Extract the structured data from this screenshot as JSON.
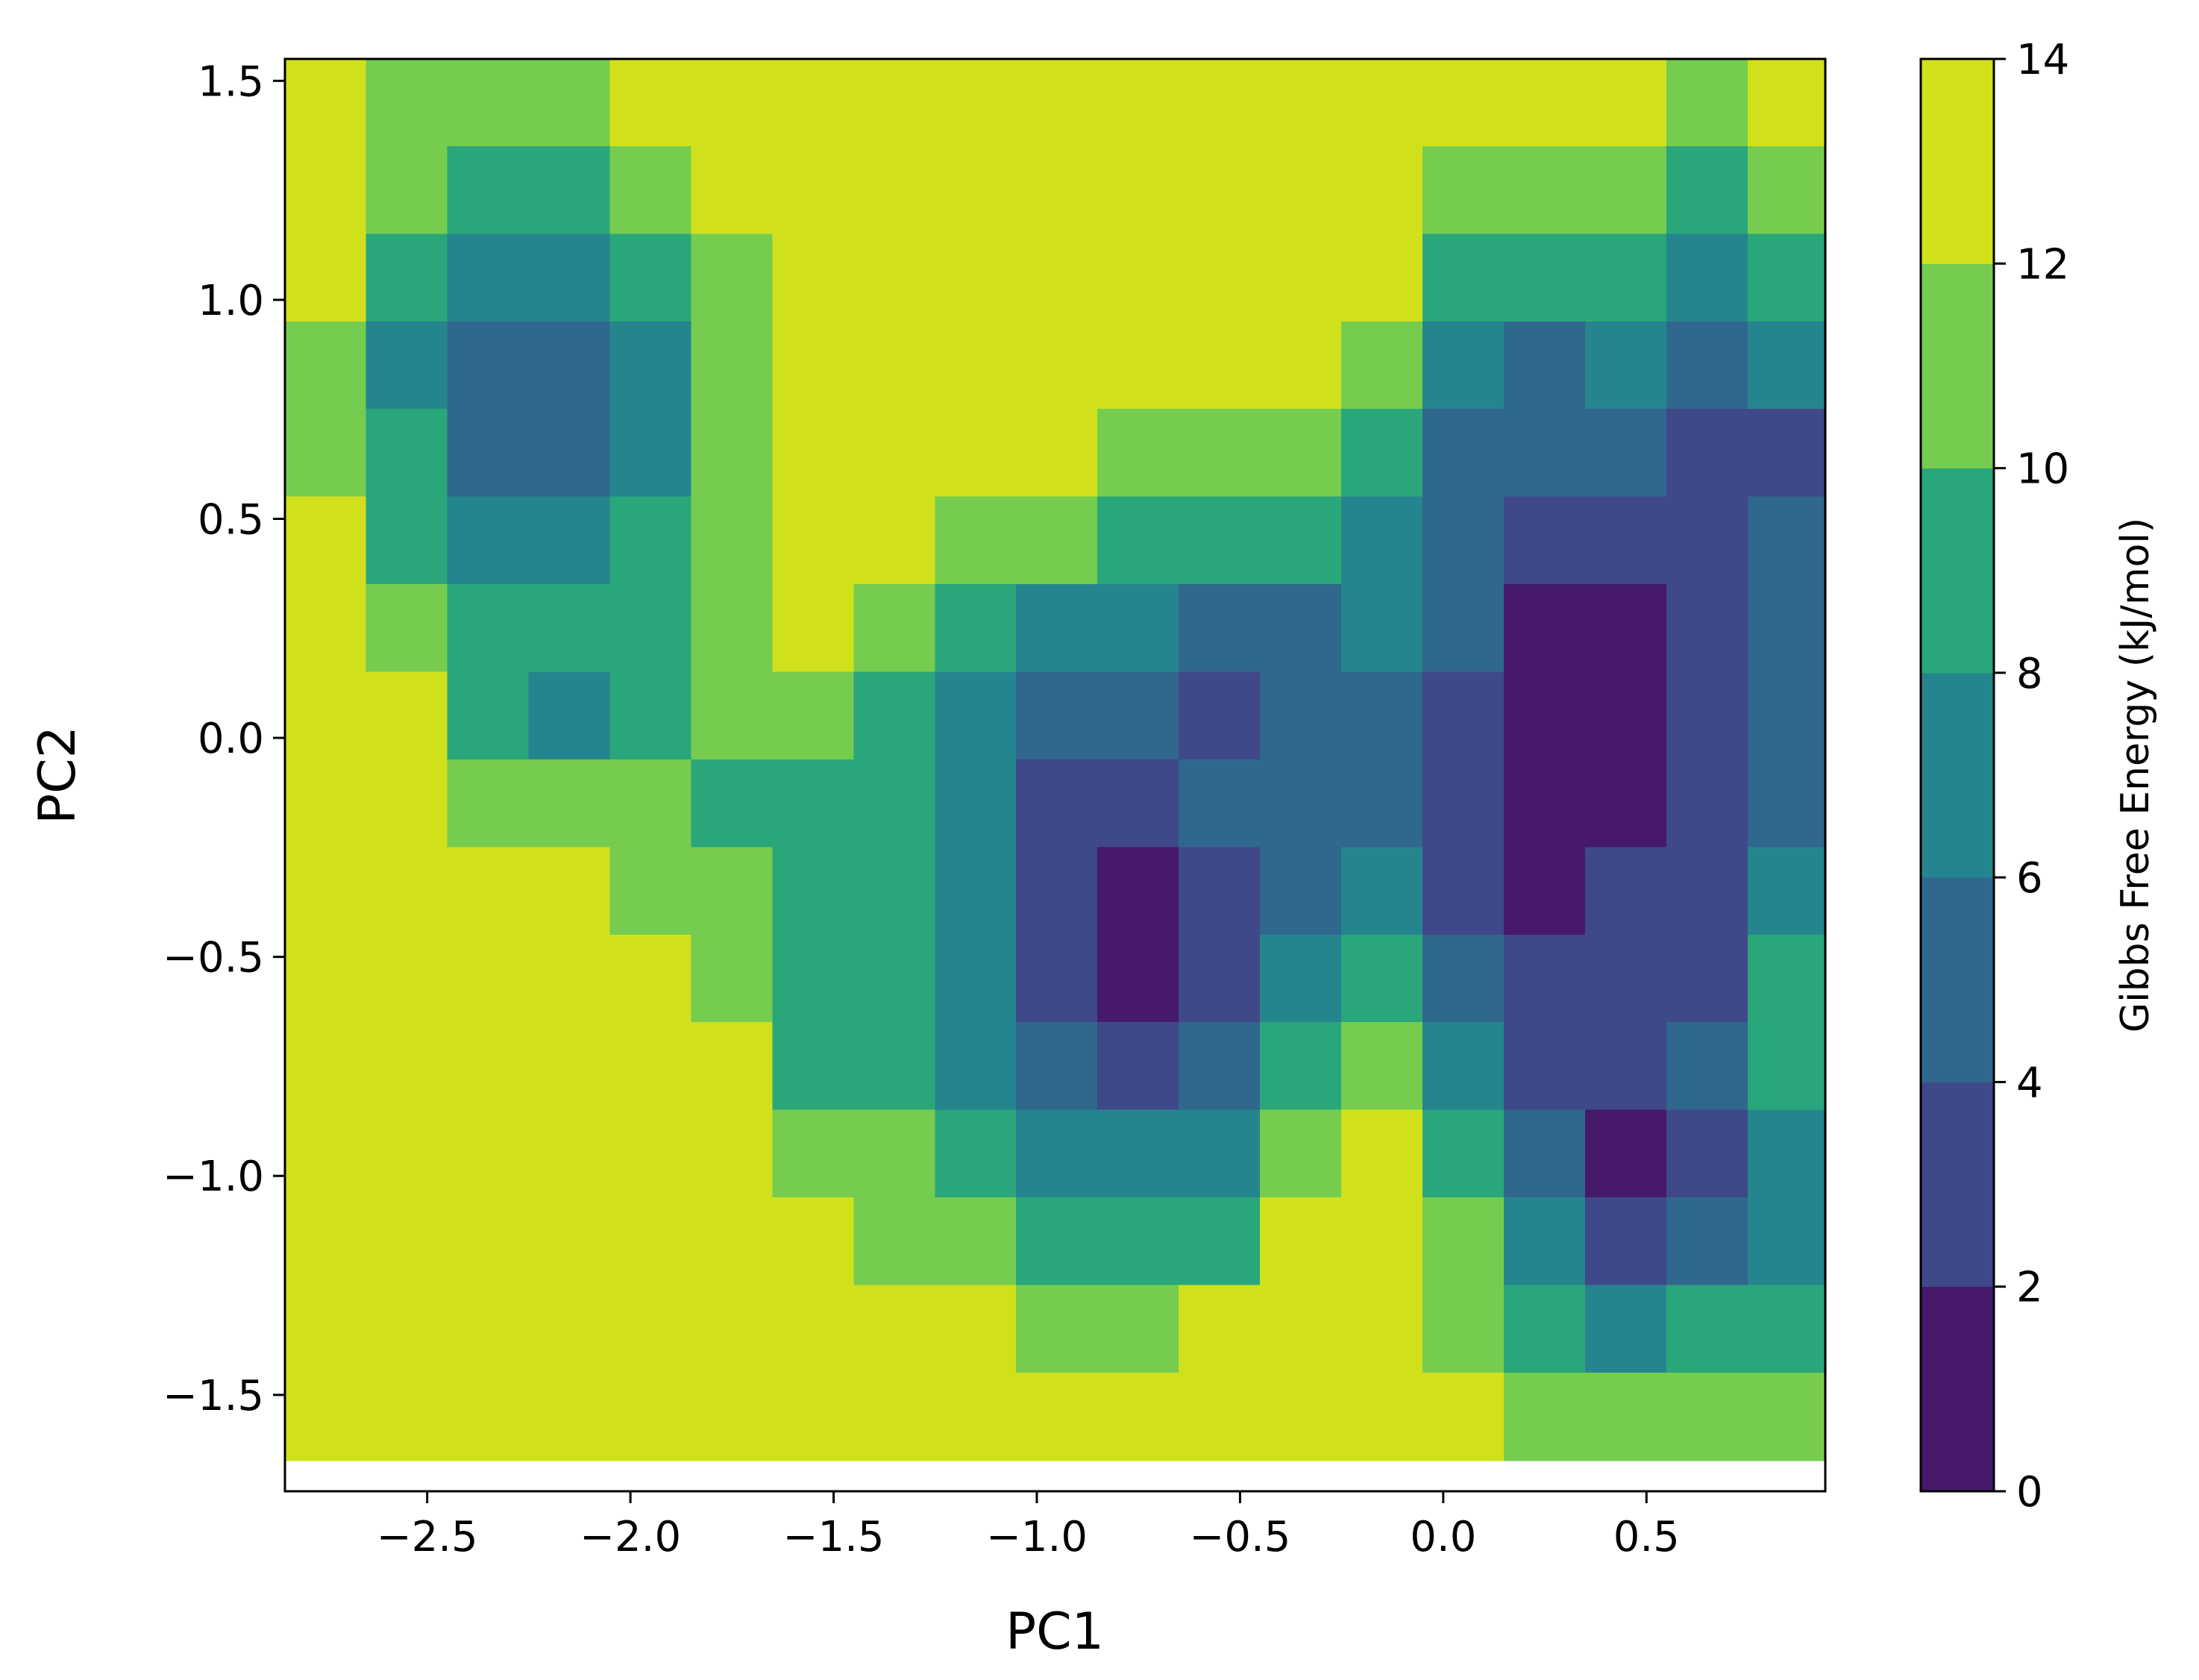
{
  "chart_data": {
    "type": "contour",
    "xlabel": "PC1",
    "ylabel": "PC2",
    "colorbar_label": "Gibbs Free Energy (kJ/mol)",
    "xlim": [
      -2.85,
      0.94
    ],
    "ylim": [
      -1.72,
      1.55
    ],
    "xticks": [
      {
        "value": -2.5,
        "label": "−2.5"
      },
      {
        "value": -2.0,
        "label": "−2.0"
      },
      {
        "value": -1.5,
        "label": "−1.5"
      },
      {
        "value": -1.0,
        "label": "−1.0"
      },
      {
        "value": -0.5,
        "label": "−0.5"
      },
      {
        "value": 0.0,
        "label": "0.0"
      },
      0.5
    ],
    "yticks": [
      1.5,
      {
        "value": 1.0,
        "label": "1.0"
      },
      0.5,
      {
        "value": 0.0,
        "label": "0.0"
      },
      {
        "value": -0.5,
        "label": "−0.5"
      },
      {
        "value": -1.0,
        "label": "−1.0"
      },
      {
        "value": -1.5,
        "label": "−1.5"
      }
    ],
    "levels": [
      0,
      2,
      4,
      6,
      8,
      10,
      12,
      14
    ],
    "colors": [
      "#46196b",
      "#3f4889",
      "#30678d",
      "#25858e",
      "#2aa67b",
      "#76cc4f",
      "#d0e11c"
    ],
    "x": [
      -2.75,
      -2.55,
      -2.35,
      -2.15,
      -1.95,
      -1.75,
      -1.55,
      -1.35,
      -1.15,
      -0.95,
      -0.75,
      -0.55,
      -0.35,
      -0.15,
      0.05,
      0.25,
      0.45,
      0.65,
      0.85
    ],
    "y": [
      1.45,
      1.25,
      1.05,
      0.85,
      0.65,
      0.45,
      0.25,
      0.05,
      -0.15,
      -0.35,
      -0.55,
      -0.75,
      -0.95,
      -1.15,
      -1.35,
      -1.55
    ],
    "z": [
      [
        13,
        11,
        11,
        11,
        13,
        13,
        13,
        13,
        13,
        13,
        13,
        13,
        13,
        13,
        13,
        13,
        13,
        11,
        13
      ],
      [
        13,
        11,
        9,
        9,
        11,
        13,
        13,
        13,
        13,
        13,
        13,
        13,
        13,
        13,
        11,
        11,
        11,
        9,
        11
      ],
      [
        13,
        9,
        7,
        7,
        9,
        11,
        13,
        13,
        13,
        13,
        13,
        13,
        13,
        13,
        9,
        9,
        9,
        7,
        9
      ],
      [
        11,
        7,
        5,
        5,
        7,
        11,
        13,
        13,
        13,
        13,
        13,
        13,
        13,
        11,
        7,
        5,
        7,
        5,
        7
      ],
      [
        11,
        9,
        5,
        5,
        7,
        11,
        13,
        13,
        13,
        13,
        11,
        11,
        11,
        9,
        5,
        5,
        5,
        3,
        3
      ],
      [
        13,
        9,
        7,
        7,
        9,
        11,
        13,
        13,
        11,
        11,
        9,
        9,
        9,
        7,
        5,
        3,
        3,
        3,
        5
      ],
      [
        13,
        11,
        9,
        9,
        9,
        11,
        13,
        11,
        9,
        7,
        7,
        5,
        5,
        7,
        5,
        1,
        1,
        3,
        5
      ],
      [
        13,
        13,
        9,
        7,
        9,
        11,
        11,
        9,
        7,
        5,
        5,
        3,
        5,
        5,
        3,
        1,
        1,
        3,
        5
      ],
      [
        13,
        13,
        11,
        11,
        11,
        9,
        9,
        9,
        7,
        3,
        3,
        5,
        5,
        5,
        3,
        1,
        1,
        3,
        5
      ],
      [
        13,
        13,
        13,
        13,
        11,
        11,
        9,
        9,
        7,
        3,
        1,
        3,
        5,
        7,
        3,
        1,
        3,
        3,
        7
      ],
      [
        13,
        13,
        13,
        13,
        13,
        11,
        9,
        9,
        7,
        3,
        1,
        3,
        7,
        9,
        5,
        3,
        3,
        3,
        9
      ],
      [
        13,
        13,
        13,
        13,
        13,
        13,
        9,
        9,
        7,
        5,
        3,
        5,
        9,
        11,
        7,
        3,
        3,
        5,
        9
      ],
      [
        13,
        13,
        13,
        13,
        13,
        13,
        11,
        11,
        9,
        7,
        7,
        7,
        11,
        13,
        9,
        5,
        1,
        3,
        7
      ],
      [
        13,
        13,
        13,
        13,
        13,
        13,
        13,
        11,
        11,
        9,
        9,
        9,
        13,
        13,
        11,
        7,
        3,
        5,
        7
      ],
      [
        13,
        13,
        13,
        13,
        13,
        13,
        13,
        13,
        13,
        11,
        11,
        13,
        13,
        13,
        11,
        9,
        7,
        9,
        9
      ],
      [
        13,
        13,
        13,
        13,
        13,
        13,
        13,
        13,
        13,
        13,
        13,
        13,
        13,
        13,
        13,
        11,
        11,
        11,
        11
      ]
    ]
  }
}
